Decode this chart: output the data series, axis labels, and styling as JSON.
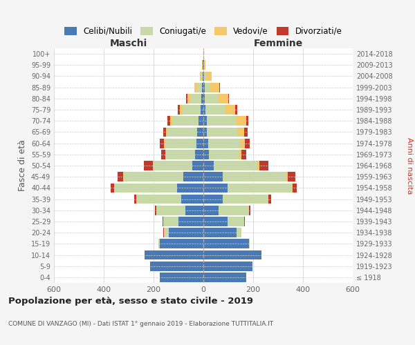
{
  "age_groups": [
    "100+",
    "95-99",
    "90-94",
    "85-89",
    "80-84",
    "75-79",
    "70-74",
    "65-69",
    "60-64",
    "55-59",
    "50-54",
    "45-49",
    "40-44",
    "35-39",
    "30-34",
    "25-29",
    "20-24",
    "15-19",
    "10-14",
    "5-9",
    "0-4"
  ],
  "birth_years": [
    "≤ 1918",
    "1919-1923",
    "1924-1928",
    "1929-1933",
    "1934-1938",
    "1939-1943",
    "1944-1948",
    "1949-1953",
    "1954-1958",
    "1959-1963",
    "1964-1968",
    "1969-1973",
    "1974-1978",
    "1979-1983",
    "1984-1988",
    "1989-1993",
    "1994-1998",
    "1999-2003",
    "2004-2008",
    "2009-2013",
    "2014-2018"
  ],
  "colors": {
    "celibi": "#4a7ab5",
    "coniugati": "#c8d9a8",
    "vedovi": "#f5c96a",
    "divorziati": "#c0392b"
  },
  "males": {
    "celibi": [
      1,
      2,
      3,
      5,
      7,
      12,
      20,
      25,
      28,
      32,
      45,
      80,
      105,
      90,
      72,
      100,
      140,
      175,
      235,
      215,
      175
    ],
    "coniugati": [
      0,
      2,
      6,
      20,
      45,
      72,
      105,
      120,
      125,
      118,
      155,
      240,
      250,
      178,
      118,
      60,
      18,
      5,
      2,
      0,
      0
    ],
    "vedovi": [
      0,
      1,
      5,
      10,
      12,
      10,
      8,
      5,
      5,
      2,
      3,
      2,
      2,
      1,
      0,
      0,
      0,
      0,
      0,
      0,
      0
    ],
    "divorziati": [
      0,
      0,
      0,
      2,
      5,
      8,
      12,
      12,
      18,
      18,
      35,
      22,
      15,
      10,
      5,
      3,
      2,
      0,
      0,
      0,
      0
    ]
  },
  "females": {
    "celibi": [
      1,
      2,
      3,
      5,
      6,
      8,
      15,
      15,
      20,
      22,
      42,
      78,
      98,
      78,
      62,
      98,
      132,
      182,
      232,
      198,
      172
    ],
    "coniugati": [
      0,
      3,
      8,
      22,
      52,
      78,
      118,
      122,
      128,
      122,
      172,
      255,
      258,
      182,
      122,
      65,
      20,
      5,
      2,
      0,
      0
    ],
    "vedovi": [
      1,
      4,
      22,
      38,
      42,
      42,
      38,
      28,
      18,
      10,
      10,
      5,
      3,
      1,
      0,
      0,
      0,
      0,
      0,
      0,
      0
    ],
    "divorziati": [
      0,
      0,
      1,
      2,
      4,
      8,
      10,
      12,
      20,
      18,
      38,
      32,
      16,
      10,
      5,
      3,
      1,
      0,
      0,
      0,
      0
    ]
  },
  "title": "Popolazione per età, sesso e stato civile - 2019",
  "subtitle": "COMUNE DI VANZAGO (MI) - Dati ISTAT 1° gennaio 2019 - Elaborazione TUTTITALIA.IT",
  "xlabel_left": "Maschi",
  "xlabel_right": "Femmine",
  "ylabel_left": "Fasce di età",
  "ylabel_right": "Anni di nascita",
  "xlim": 600,
  "legend_labels": [
    "Celibi/Nubili",
    "Coniugati/e",
    "Vedovi/e",
    "Divorziati/e"
  ],
  "bg_color": "#f5f5f5",
  "plot_bg_color": "#ffffff",
  "grid_color": "#cccccc"
}
